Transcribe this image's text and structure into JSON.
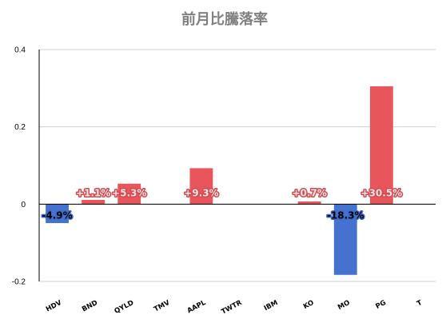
{
  "chart_data": {
    "type": "bar",
    "title": "前月比騰落率",
    "categories": [
      "HDV",
      "BND",
      "QYLD",
      "TMV",
      "AAPL",
      "TWTR",
      "IBM",
      "KO",
      "MO",
      "PG",
      "T"
    ],
    "values": [
      -0.049,
      0.011,
      0.053,
      null,
      0.093,
      null,
      null,
      0.007,
      -0.183,
      0.305,
      null
    ],
    "data_labels": [
      "-4.9%",
      "+1.1%",
      "+5.3%",
      "",
      "+9.3%",
      "",
      "",
      "+0.7%",
      "-18.3%",
      "+30.5%",
      ""
    ],
    "ylim": [
      -0.2,
      0.4
    ],
    "yticks": [
      -0.2,
      0,
      0.2,
      0.4
    ],
    "ytick_labels": [
      "-0.2",
      "0",
      "0.2",
      "0.4"
    ],
    "grid": true,
    "colors": {
      "positive": "#e8555a",
      "negative": "#4473cf",
      "grid": "#d0d0d0",
      "axis": "#000000"
    }
  }
}
